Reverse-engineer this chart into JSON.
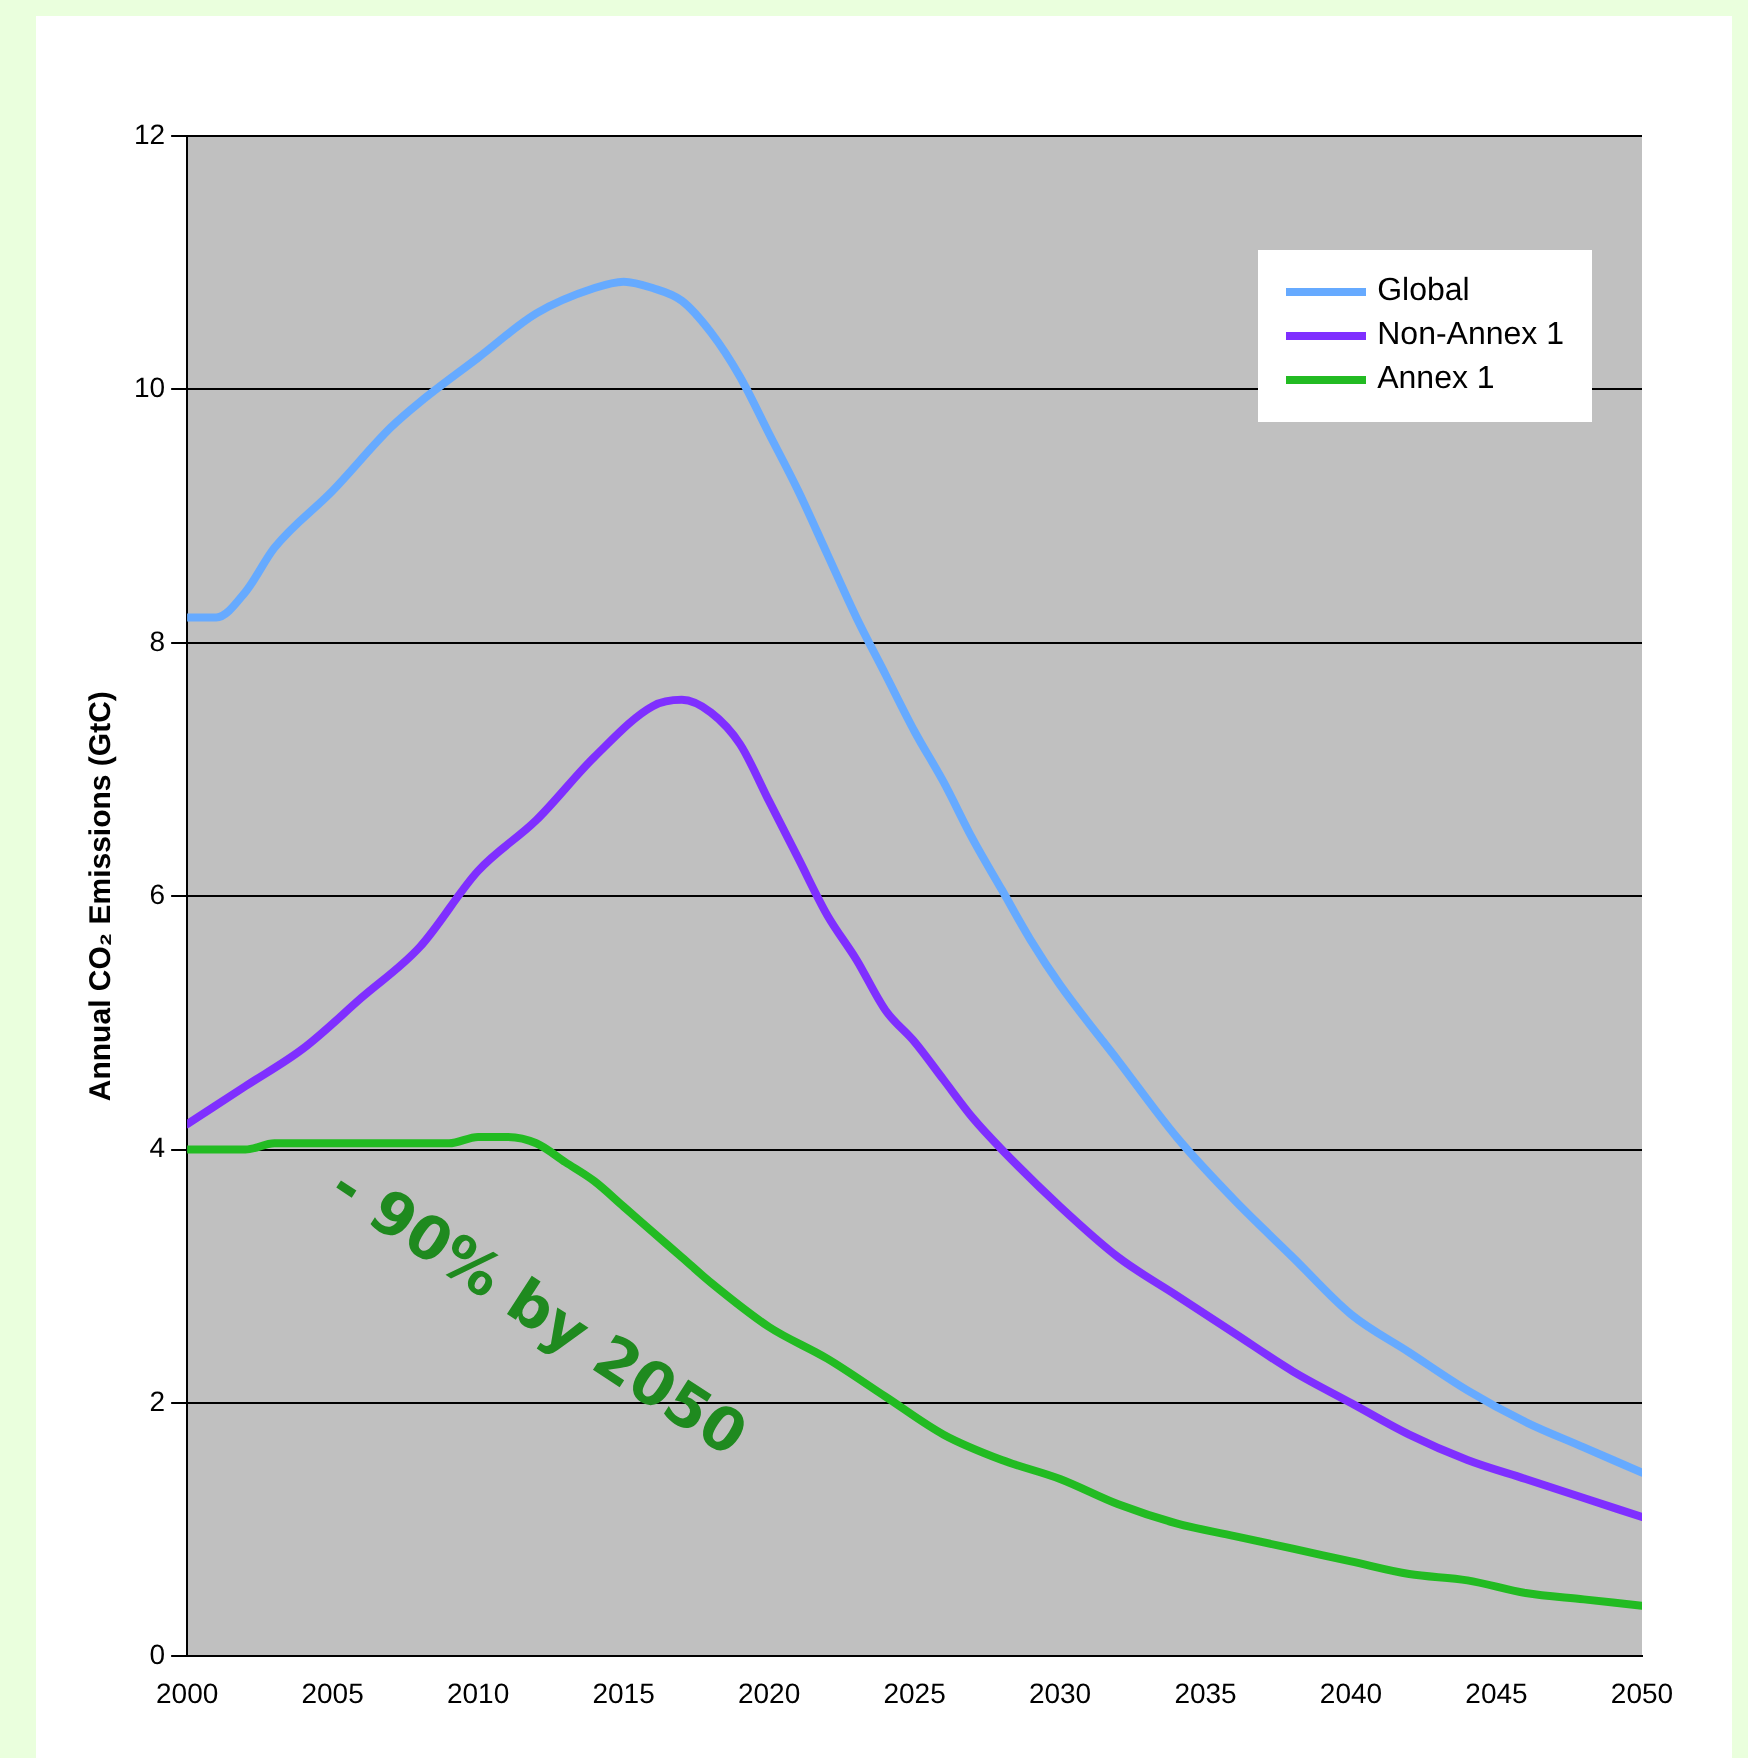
{
  "chart_data": {
    "type": "line",
    "ylabel": "Annual CO₂ Emissions (GtC)",
    "xlim": [
      2000,
      2050
    ],
    "xticks": [
      2000,
      2005,
      2010,
      2015,
      2020,
      2025,
      2030,
      2035,
      2040,
      2045,
      2050
    ],
    "ylim": [
      0,
      12
    ],
    "yticks": [
      0,
      2,
      4,
      6,
      8,
      10,
      12
    ],
    "grid": "y",
    "legend": "top right",
    "marker": "none",
    "line_style": "solid",
    "annotations": [
      "- 90% by 2050"
    ],
    "series": [
      {
        "name": "Global",
        "color": "#66aaff",
        "x": [
          2000,
          2001,
          2002,
          2003,
          2005,
          2007,
          2008,
          2010,
          2012,
          2014,
          2015,
          2016,
          2017,
          2018,
          2019,
          2020,
          2021,
          2022,
          2023,
          2024,
          2025,
          2026,
          2027,
          2028,
          2029,
          2030,
          2032,
          2034,
          2036,
          2038,
          2040,
          2042,
          2044,
          2046,
          2048,
          2050
        ],
        "values": [
          8.2,
          8.2,
          8.4,
          8.75,
          9.2,
          9.7,
          9.9,
          10.25,
          10.6,
          10.8,
          10.85,
          10.8,
          10.7,
          10.45,
          10.1,
          9.65,
          9.2,
          8.7,
          8.2,
          7.75,
          7.3,
          6.9,
          6.45,
          6.05,
          5.65,
          5.3,
          4.7,
          4.1,
          3.6,
          3.15,
          2.7,
          2.4,
          2.1,
          1.85,
          1.65,
          1.45
        ]
      },
      {
        "name": "Non-Annex 1",
        "color": "#7f2fff",
        "x": [
          2000,
          2002,
          2004,
          2006,
          2008,
          2010,
          2012,
          2014,
          2016,
          2017,
          2018,
          2019,
          2020,
          2021,
          2022,
          2023,
          2024,
          2025,
          2026,
          2027,
          2028,
          2030,
          2032,
          2034,
          2036,
          2038,
          2040,
          2042,
          2044,
          2046,
          2048,
          2050
        ],
        "values": [
          4.2,
          4.5,
          4.8,
          5.2,
          5.6,
          6.2,
          6.6,
          7.1,
          7.5,
          7.55,
          7.45,
          7.2,
          6.75,
          6.3,
          5.85,
          5.5,
          5.1,
          4.85,
          4.55,
          4.25,
          4.0,
          3.55,
          3.15,
          2.85,
          2.55,
          2.25,
          2.0,
          1.75,
          1.55,
          1.4,
          1.25,
          1.1
        ]
      },
      {
        "name": "Annex 1",
        "color": "#22bb22",
        "x": [
          2000,
          2002,
          2003,
          2005,
          2009,
          2010,
          2011,
          2012,
          2013,
          2014,
          2015,
          2016,
          2017,
          2018,
          2020,
          2022,
          2024,
          2026,
          2028,
          2030,
          2032,
          2034,
          2036,
          2038,
          2040,
          2042,
          2044,
          2046,
          2048,
          2050
        ],
        "values": [
          4.0,
          4.0,
          4.05,
          4.05,
          4.05,
          4.1,
          4.1,
          4.05,
          3.9,
          3.75,
          3.55,
          3.35,
          3.15,
          2.95,
          2.6,
          2.35,
          2.05,
          1.75,
          1.55,
          1.4,
          1.2,
          1.05,
          0.95,
          0.85,
          0.75,
          0.65,
          0.6,
          0.5,
          0.45,
          0.4
        ]
      }
    ]
  }
}
